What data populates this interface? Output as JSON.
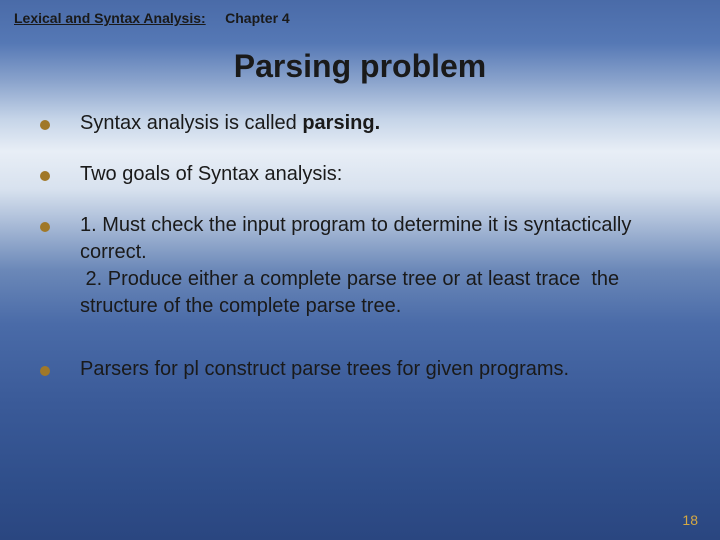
{
  "header": {
    "left": "Lexical and Syntax Analysis:",
    "right": "Chapter 4"
  },
  "title": "Parsing problem",
  "bullets": [
    {
      "html": "Syntax analysis is called <b>parsing.</b>"
    },
    {
      "html": "Two goals of Syntax analysis:"
    },
    {
      "html": "1. Must check the input program to determine it is syntactically correct.<br>&nbsp;2. Produce either a complete parse tree or at least trace&nbsp; the structure of the complete parse tree."
    },
    {
      "html": "Parsers for pl construct parse trees for given programs."
    }
  ],
  "pageNumber": "18",
  "colors": {
    "bulletDot": "#a07828",
    "pageNum": "#d4a843",
    "text": "#1a1a1a"
  },
  "typography": {
    "titleSize": 32,
    "bodySize": 20,
    "headerSize": 14,
    "fontFamily": "Verdana"
  }
}
